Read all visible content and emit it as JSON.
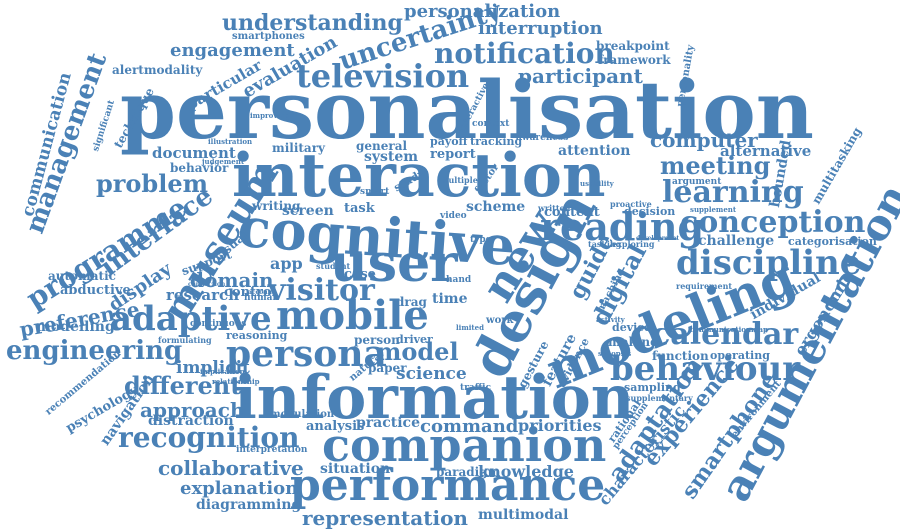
{
  "colors": {
    "primary": "#4a81b6",
    "light": "#6a9bc9",
    "dark": "#3e74a8",
    "background": "#ffffff"
  },
  "words": [
    "personalisation",
    "interaction",
    "cognitive",
    "information",
    "companion",
    "performance",
    "design",
    "user",
    "modeling",
    "argumentation",
    "adaptive",
    "mobile",
    "persona",
    "new",
    "reading",
    "conception",
    "learning",
    "meeting",
    "discipline",
    "behaviour",
    "calendar",
    "television",
    "notification",
    "uncertainty",
    "personalization",
    "understanding",
    "interruption",
    "engagement",
    "evaluation",
    "participant",
    "museum",
    "visitor",
    "engineering",
    "recognition",
    "collaborative",
    "explanation",
    "representation",
    "management",
    "programme",
    "interface",
    "problem",
    "model",
    "different",
    "approach",
    "adaptation",
    "experience",
    "smartphone",
    "computer",
    "alternative",
    "preference",
    "communication",
    "digital",
    "domain",
    "display",
    "guide",
    "command",
    "knowledge",
    "priorities",
    "science",
    "implicit",
    "distraction",
    "situation",
    "practice",
    "analysis",
    "paradigm",
    "multimodal",
    "diagramming",
    "modelling",
    "abductive",
    "automatic",
    "navigation",
    "psychology",
    "recommendation",
    "characteristic",
    "ergonomic",
    "individual",
    "bounded",
    "multitasking",
    "categorisation",
    "challenge",
    "making",
    "function",
    "operating",
    "sampling",
    "supplementary",
    "rational",
    "perception",
    "environment",
    "framework",
    "breakpoint",
    "personality",
    "alertmodality",
    "smartphones",
    "particular",
    "technique",
    "significant",
    "screen",
    "writing",
    "document",
    "behavior",
    "military",
    "general",
    "system",
    "report",
    "payoff",
    "tracking",
    "context",
    "awareness",
    "attention",
    "scheme",
    "content",
    "task",
    "decision",
    "supplement",
    "argument",
    "visual",
    "support",
    "control",
    "app",
    "research",
    "case",
    "time",
    "drag",
    "person",
    "driver",
    "paper",
    "gesture",
    "feature",
    "evidence",
    "device",
    "modulation",
    "interpretation",
    "reasoning",
    "continuous",
    "human",
    "formulating",
    "implication",
    "relationship",
    "proactive",
    "machine",
    "exploring",
    "tasking",
    "synopsis",
    "requirement",
    "student",
    "video",
    "type",
    "interactive",
    "study",
    "multiple",
    "factor",
    "smart",
    "hand",
    "work",
    "limited",
    "traffic",
    "natural",
    "written",
    "improving",
    "illustration",
    "judgement",
    "communicationmap",
    "usability",
    "activity",
    "development",
    "account",
    "connection"
  ]
}
